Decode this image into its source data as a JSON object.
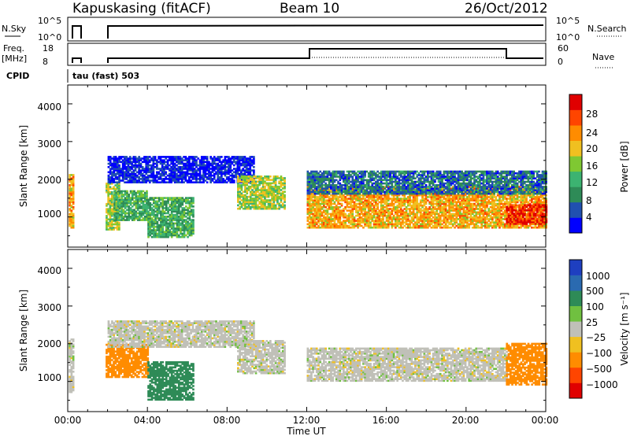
{
  "header": {
    "site": "Kapuskasing (fitACF)",
    "beam": "Beam 10",
    "date": "26/Oct/2012"
  },
  "panels": {
    "nsky_label": "N.Sky",
    "nsky_ticks": [
      "10^5",
      "10^0"
    ],
    "nsearch_label": "N.Search",
    "nsearch_ticks": [
      "10^5",
      "10^0"
    ],
    "freq_label_1": "Freq.",
    "freq_label_2": "[MHz]",
    "freq_ticks": [
      "18",
      "8"
    ],
    "nave_label": "Nave",
    "nave_ticks": [
      "60",
      "0"
    ],
    "cpid_label": "CPID",
    "cpid_value": "tau (fast) 503"
  },
  "axes": {
    "ylabel": "Slant Range [km]",
    "xlabel": "Time UT",
    "yticks": [
      "4000",
      "3000",
      "2000",
      "1000"
    ],
    "xticks": [
      "00:00",
      "04:00",
      "08:00",
      "12:00",
      "16:00",
      "20:00",
      "00:00"
    ]
  },
  "colorbars": {
    "power": {
      "label": "Power [dB]",
      "ticks": [
        "28",
        "24",
        "20",
        "16",
        "12",
        "8",
        "4"
      ],
      "colors": [
        "#0000ff",
        "#2050b0",
        "#2e8b57",
        "#3cb371",
        "#7fc832",
        "#f0c020",
        "#ff8c00",
        "#ff4500",
        "#e00000"
      ]
    },
    "velocity": {
      "label": "Velocity [m s⁻¹]",
      "ticks": [
        "1000",
        "500",
        "100",
        "25",
        "−25",
        "−100",
        "−500",
        "−1000"
      ],
      "colors": [
        "#1e3fc0",
        "#2a6ab0",
        "#2e8b57",
        "#70c040",
        "#c0c0b8",
        "#f0c020",
        "#ff8c00",
        "#ff4500",
        "#e00000"
      ]
    }
  },
  "chart_data": {
    "type": "heatmap",
    "title": "Kapuskasing (fitACF)",
    "xlabel": "Time UT",
    "ylabel": "Slant Range [km]",
    "xlim": [
      0,
      24
    ],
    "ylim": [
      200,
      4500
    ],
    "x_units": "hours UT on 26/Oct/2012",
    "power_regions": [
      {
        "t0": 0.05,
        "t1": 0.25,
        "r0": 700,
        "r1": 2100,
        "value": 20
      },
      {
        "t0": 1.9,
        "t1": 2.6,
        "r0": 650,
        "r1": 1900,
        "value": 16
      },
      {
        "t0": 2.3,
        "t1": 4.0,
        "r0": 900,
        "r1": 1700,
        "value": 12
      },
      {
        "t0": 2.0,
        "t1": 9.3,
        "r0": 1900,
        "r1": 2600,
        "value": 4
      },
      {
        "t0": 4.0,
        "t1": 6.3,
        "r0": 450,
        "r1": 1500,
        "value": 12
      },
      {
        "t0": 8.5,
        "t1": 10.9,
        "r0": 1200,
        "r1": 2100,
        "value": 16
      },
      {
        "t0": 12.0,
        "t1": 24.0,
        "r0": 700,
        "r1": 1800,
        "value": 20
      },
      {
        "t0": 12.0,
        "t1": 24.0,
        "r0": 1600,
        "r1": 2200,
        "value": 8
      },
      {
        "t0": 22.0,
        "t1": 24.0,
        "r0": 800,
        "r1": 1300,
        "value": 26
      }
    ],
    "velocity_regions": [
      {
        "t0": 0.05,
        "t1": 0.25,
        "r0": 700,
        "r1": 2100,
        "value": 0
      },
      {
        "t0": 1.9,
        "t1": 4.0,
        "r0": 1100,
        "r1": 2000,
        "value": -300
      },
      {
        "t0": 2.0,
        "t1": 9.3,
        "r0": 1900,
        "r1": 2600,
        "value": 0
      },
      {
        "t0": 4.0,
        "t1": 6.3,
        "r0": 500,
        "r1": 1500,
        "value": 150
      },
      {
        "t0": 8.5,
        "t1": 10.9,
        "r0": 1200,
        "r1": 2100,
        "value": 0
      },
      {
        "t0": 12.0,
        "t1": 22.0,
        "r0": 1000,
        "r1": 1900,
        "value": 0
      },
      {
        "t0": 22.0,
        "t1": 24.0,
        "r0": 900,
        "r1": 2000,
        "value": -200
      }
    ]
  }
}
